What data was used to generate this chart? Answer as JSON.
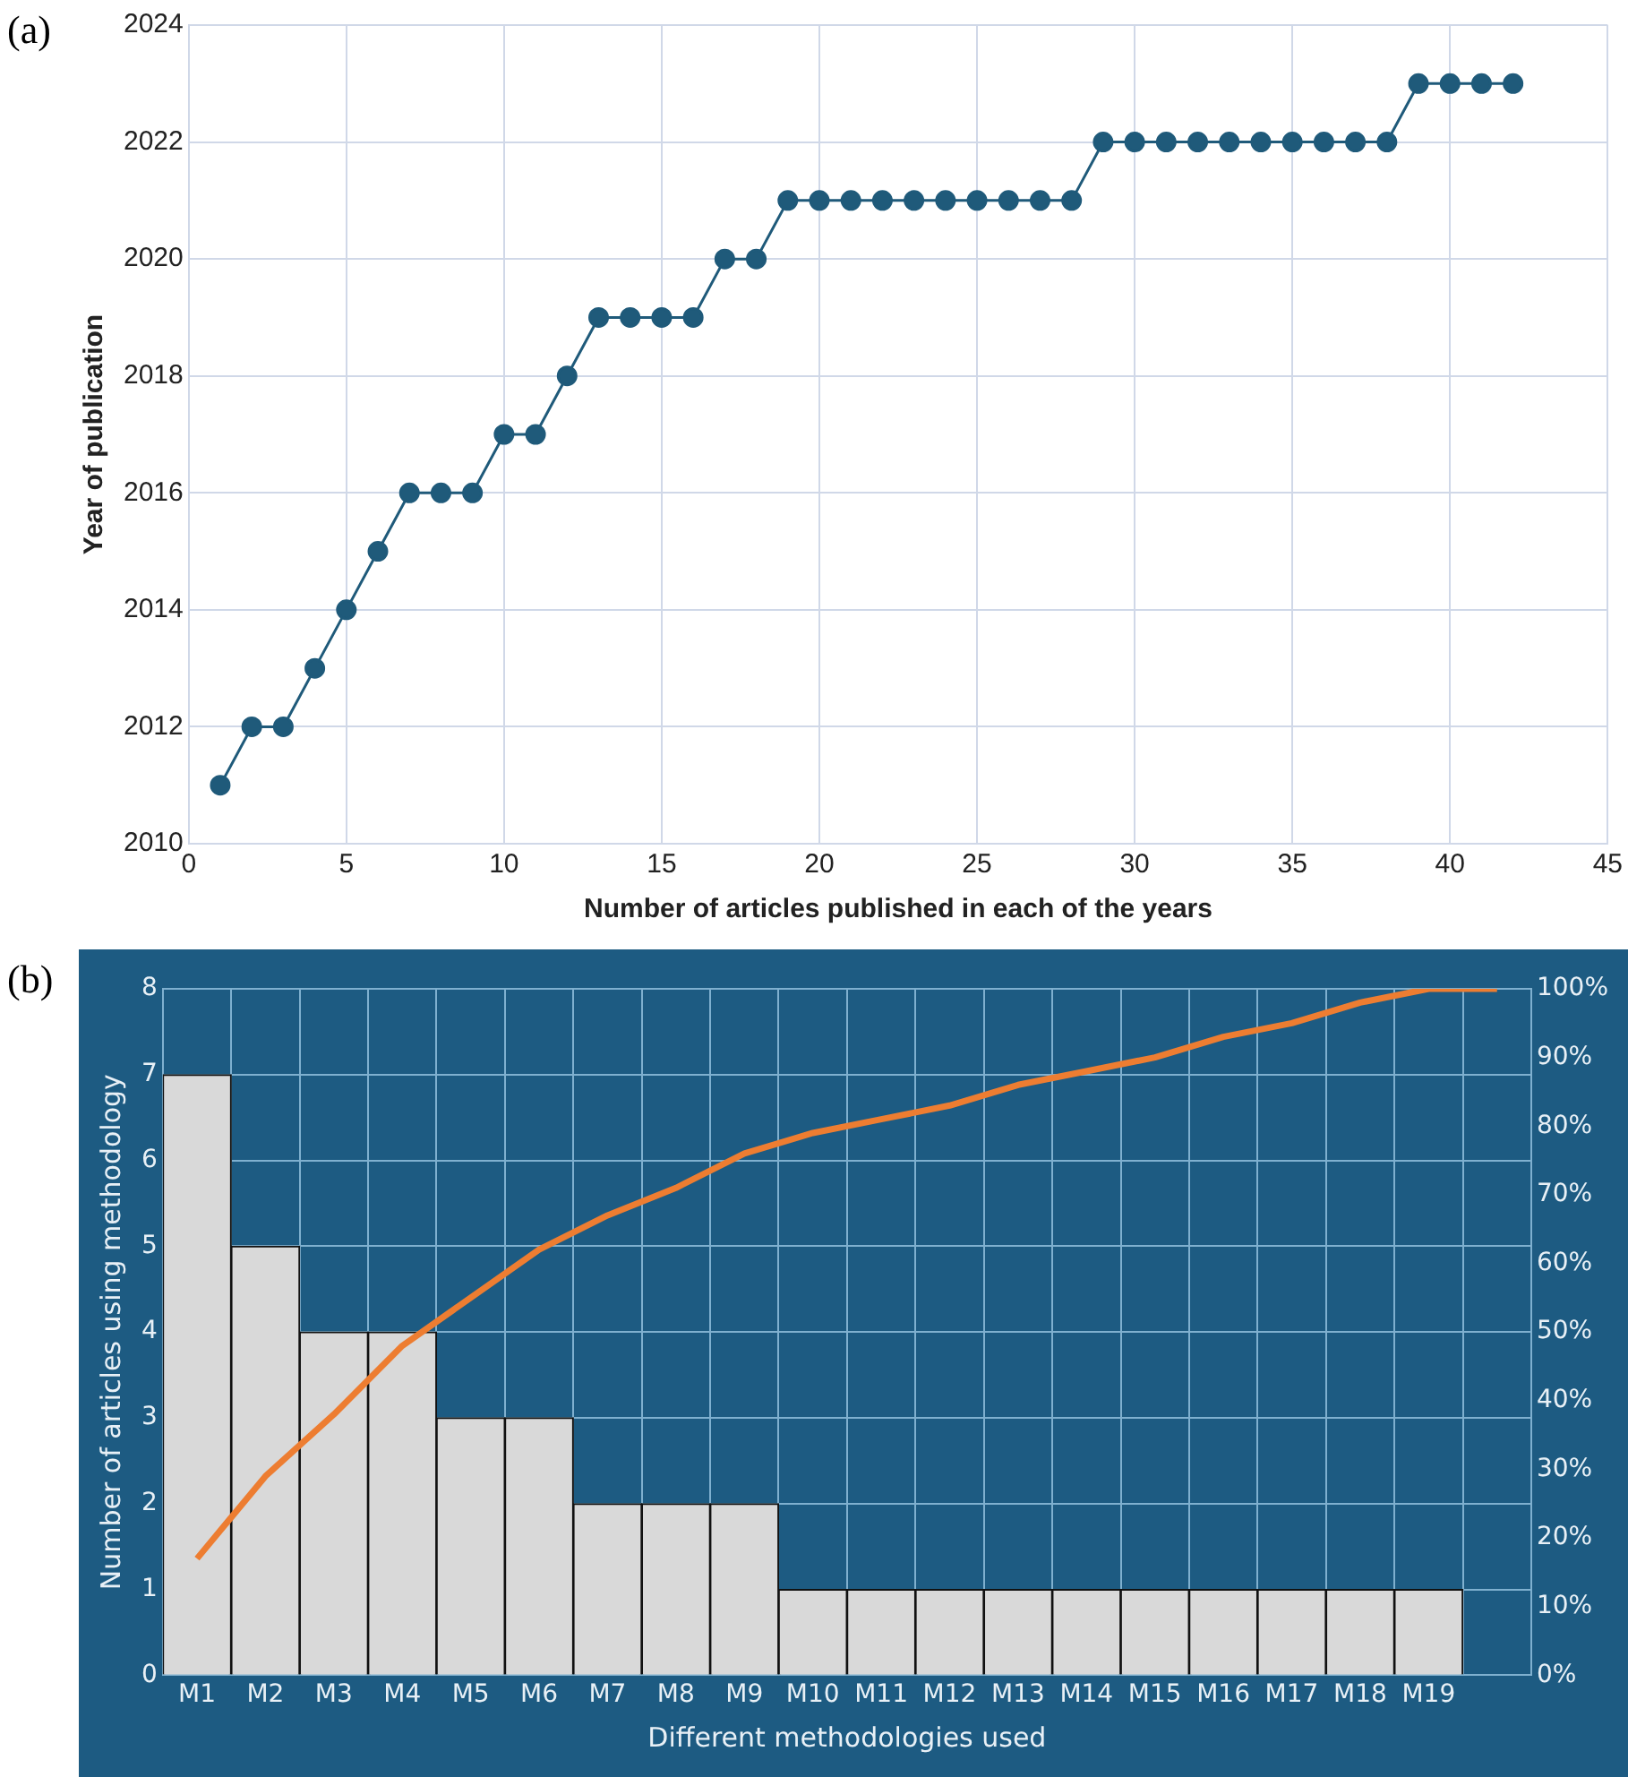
{
  "chart_data": [
    {
      "type": "line",
      "xlabel": "Number of articles published in each of the years",
      "ylabel": "Year of publication",
      "annotations": [
        "(a)"
      ],
      "x": [
        1,
        2,
        3,
        4,
        5,
        6,
        7,
        8,
        9,
        10,
        11,
        12,
        13,
        14,
        15,
        16,
        17,
        18,
        19,
        20,
        21,
        22,
        23,
        24,
        25,
        26,
        27,
        28,
        29,
        30,
        31,
        32,
        33,
        34,
        35,
        36,
        37,
        38,
        39,
        40,
        41,
        42
      ],
      "series": [
        {
          "color": "#1f5a7a",
          "values": [
            2011,
            2012,
            2012,
            2013,
            2014,
            2015,
            2016,
            2016,
            2016,
            2017,
            2017,
            2018,
            2019,
            2019,
            2019,
            2019,
            2020,
            2020,
            2021,
            2021,
            2021,
            2021,
            2021,
            2021,
            2021,
            2021,
            2021,
            2021,
            2022,
            2022,
            2022,
            2022,
            2022,
            2022,
            2022,
            2022,
            2022,
            2022,
            2023,
            2023,
            2023,
            2023
          ]
        }
      ],
      "xlim": [
        0,
        45
      ],
      "xticks": [
        0,
        5,
        10,
        15,
        20,
        25,
        30,
        35,
        40,
        45
      ],
      "ylim": [
        2010,
        2024
      ],
      "yticks": [
        2010,
        2012,
        2014,
        2016,
        2018,
        2020,
        2022,
        2024
      ],
      "grid": true,
      "legend": false,
      "marker": "circle",
      "line_style": "solid"
    },
    {
      "type": "bar",
      "xlabel": "Different methodologies used",
      "ylabel": "Number of articles using methodology",
      "annotations": [
        "(b)"
      ],
      "categories": [
        "M1",
        "M2",
        "M3",
        "M4",
        "M5",
        "M6",
        "M7",
        "M8",
        "M9",
        "M10",
        "M11",
        "M12",
        "M13",
        "M14",
        "M15",
        "M16",
        "M17",
        "M18",
        "M19",
        null
      ],
      "series": [
        {
          "type": "bar",
          "color": "#d9d9d9",
          "values": [
            7,
            5,
            4,
            4,
            3,
            3,
            2,
            2,
            2,
            1,
            1,
            1,
            1,
            1,
            1,
            1,
            1,
            1,
            1,
            null
          ]
        },
        {
          "type": "line",
          "axis": "y2",
          "color": "#ed7d31",
          "values": [
            17,
            29,
            38,
            48,
            55,
            62,
            67,
            71,
            76,
            79,
            81,
            83,
            86,
            88,
            90,
            93,
            95,
            98,
            100,
            100
          ]
        }
      ],
      "ylim": [
        0,
        8
      ],
      "yticks": [
        0,
        1,
        2,
        3,
        4,
        5,
        6,
        7,
        8
      ],
      "y2lim": [
        0,
        100
      ],
      "y2ticks": [
        {
          "value": 0,
          "label": "0%"
        },
        {
          "value": 10,
          "label": "10%"
        },
        {
          "value": 20,
          "label": "20%"
        },
        {
          "value": 30,
          "label": "30%"
        },
        {
          "value": 40,
          "label": "40%"
        },
        {
          "value": 50,
          "label": "50%"
        },
        {
          "value": 60,
          "label": "60%"
        },
        {
          "value": 70,
          "label": "70%"
        },
        {
          "value": 80,
          "label": "80%"
        },
        {
          "value": 90,
          "label": "90%"
        },
        {
          "value": 100,
          "label": "100%"
        }
      ],
      "grid": true,
      "legend": false
    }
  ]
}
